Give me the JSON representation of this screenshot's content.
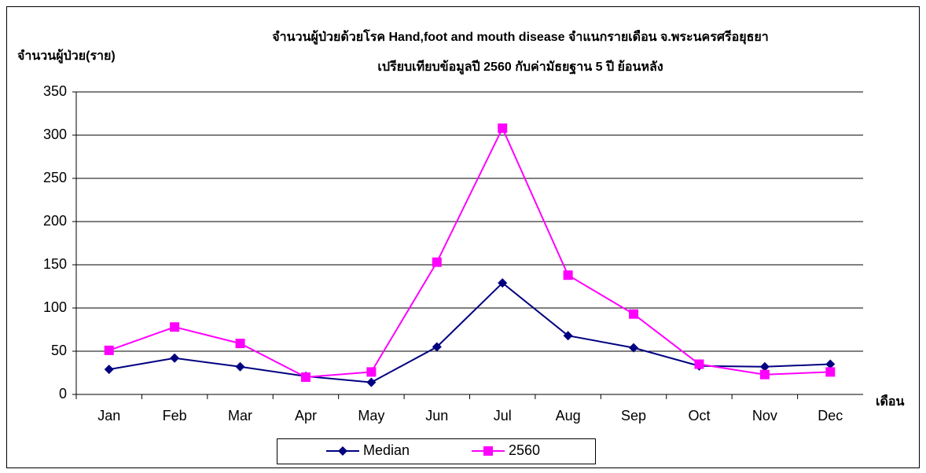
{
  "chart_data": {
    "type": "line",
    "title": [
      "จำนวนผู้ป่วยด้วยโรค  Hand,foot and mouth disease  จำแนกรายเดือน   จ.พระนครศรีอยุธยา",
      "เปรียบเทียบข้อมูลปี  2560  กับค่ามัธยฐาน 5 ปี ย้อนหลัง"
    ],
    "y_label": "จำนวนผู้ป่วย(ราย)",
    "x_label": "เดือน",
    "categories": [
      "Jan",
      "Feb",
      "Mar",
      "Apr",
      "May",
      "Jun",
      "Jul",
      "Aug",
      "Sep",
      "Oct",
      "Nov",
      "Dec"
    ],
    "series": [
      {
        "name": "Median",
        "color": "#000080",
        "marker": "diamond",
        "values": [
          29,
          42,
          32,
          21,
          14,
          55,
          129,
          68,
          54,
          33,
          32,
          35
        ]
      },
      {
        "name": "2560",
        "color": "#ff00ff",
        "marker": "square",
        "values": [
          51,
          78,
          59,
          20,
          26,
          153,
          308,
          138,
          93,
          35,
          23,
          26
        ]
      }
    ],
    "ylim": [
      0,
      350
    ],
    "yticks": [
      0,
      50,
      100,
      150,
      200,
      250,
      300,
      350
    ],
    "grid": true,
    "legend": "bottom"
  }
}
